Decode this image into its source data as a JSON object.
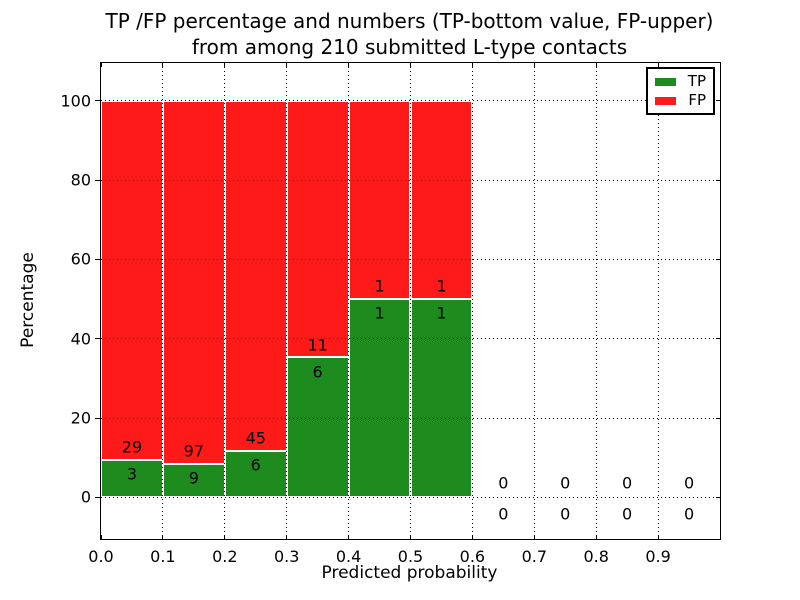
{
  "title_line1": "TP /FP percentage and numbers (TP-bottom value, FP-upper)",
  "title_line2": "from among 210 submitted L-type contacts",
  "chart_data": {
    "type": "bar",
    "stacked": true,
    "title": "TP /FP percentage and numbers (TP-bottom value, FP-upper) from among 210 submitted L-type contacts",
    "xlabel": "Predicted probability",
    "ylabel": "Percentage",
    "total_contacts": 210,
    "xlim": [
      0.0,
      1.0
    ],
    "ylim": [
      -10.5,
      109.5
    ],
    "xticks": [
      "0.0",
      "0.1",
      "0.2",
      "0.3",
      "0.4",
      "0.5",
      "0.6",
      "0.7",
      "0.8",
      "0.9"
    ],
    "yticks": [
      0,
      20,
      40,
      60,
      80,
      100
    ],
    "grid": "dotted",
    "bin_width": 0.1,
    "bin_starts": [
      0.0,
      0.1,
      0.2,
      0.3,
      0.4,
      0.5,
      0.6,
      0.7,
      0.8,
      0.9
    ],
    "series": [
      {
        "name": "TP",
        "color": "#1e8b1e",
        "counts": [
          3,
          9,
          6,
          6,
          1,
          1,
          0,
          0,
          0,
          0
        ],
        "pct": [
          9.375,
          8.4906,
          11.7647,
          35.2941,
          50,
          50,
          0,
          0,
          0,
          0
        ]
      },
      {
        "name": "FP",
        "color": "#ff1a1a",
        "counts": [
          29,
          97,
          45,
          11,
          1,
          1,
          0,
          0,
          0,
          0
        ],
        "pct": [
          90.625,
          91.5094,
          88.2353,
          64.7059,
          50,
          50,
          0,
          0,
          0,
          0
        ]
      }
    ],
    "legend": {
      "position": "upper right",
      "entries": [
        "TP",
        "FP"
      ]
    }
  }
}
